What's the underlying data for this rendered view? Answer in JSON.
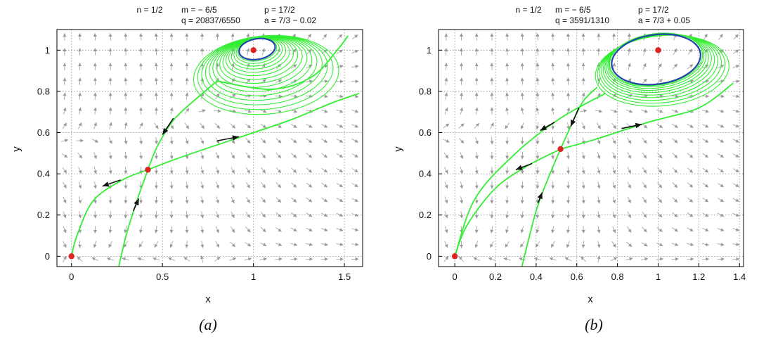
{
  "colors": {
    "orbit": "#33ee33",
    "limit_cycle": "#2244aa",
    "equilibrium": "#dd2222",
    "vector": "#9a9a9a",
    "arrow": "#111111",
    "grid": "#888888"
  },
  "chart_data": [
    {
      "type": "phase-portrait",
      "caption": "(a)",
      "params": {
        "n": "n = 1/2",
        "m": "m = − 6/5",
        "p": "p = 17/2",
        "q": "q = 20837/6550",
        "a": "a = 7/3 − 0.02"
      },
      "xlabel": "x",
      "ylabel": "y",
      "xlim": [
        -0.08,
        1.6
      ],
      "ylim": [
        -0.05,
        1.1
      ],
      "xticks": [
        0,
        0.5,
        1,
        1.5
      ],
      "xtick_labels": [
        "0",
        "0.5",
        "1",
        "1.5"
      ],
      "yticks": [
        0,
        0.2,
        0.4,
        0.6,
        0.8,
        1
      ],
      "ytick_labels": [
        "0",
        "0.2",
        "0.4",
        "0.6",
        "0.8",
        "1"
      ],
      "grid": true,
      "equilibria": [
        [
          0,
          0
        ],
        [
          0.42,
          0.42
        ],
        [
          1,
          1
        ]
      ],
      "cycle": {
        "cx": 1.02,
        "cy": 1.005,
        "rx": 0.1,
        "ry": 0.05,
        "ang": -10
      },
      "spiral": {
        "n": 16,
        "cx0": 1.02,
        "cy0": 1.005,
        "rx0": 0.1,
        "ry0": 0.05,
        "ang0": -10,
        "cx1": 1.07,
        "cy1": 0.88,
        "rx1": 0.4,
        "ry1": 0.19,
        "ang1": -5
      },
      "curves": [
        [
          [
            0.26,
            -0.05
          ],
          [
            0.3,
            0.1
          ],
          [
            0.36,
            0.27
          ],
          [
            0.42,
            0.42
          ]
        ],
        [
          [
            0.42,
            0.42
          ],
          [
            0.47,
            0.53
          ],
          [
            0.56,
            0.66
          ],
          [
            0.68,
            0.76
          ],
          [
            0.8,
            0.85
          ]
        ],
        [
          [
            0.42,
            0.42
          ],
          [
            0.6,
            0.48
          ],
          [
            0.9,
            0.57
          ],
          [
            1.2,
            0.66
          ],
          [
            1.42,
            0.74
          ],
          [
            1.58,
            0.79
          ]
        ],
        [
          [
            0.42,
            0.42
          ],
          [
            0.28,
            0.37
          ],
          [
            0.12,
            0.27
          ],
          [
            0.03,
            0.1
          ],
          [
            0,
            0
          ]
        ],
        [
          [
            0.8,
            0.85
          ],
          [
            1.1,
            0.81
          ],
          [
            1.32,
            0.87
          ],
          [
            1.46,
            1.0
          ],
          [
            1.52,
            1.07
          ]
        ]
      ],
      "arrows": [
        [
          [
            0.34,
            0.22
          ],
          [
            0.37,
            0.28
          ]
        ],
        [
          [
            0.56,
            0.67
          ],
          [
            0.5,
            0.59
          ]
        ],
        [
          [
            0.27,
            0.37
          ],
          [
            0.17,
            0.34
          ]
        ],
        [
          [
            0.8,
            0.56
          ],
          [
            0.92,
            0.58
          ]
        ]
      ]
    },
    {
      "type": "phase-portrait",
      "caption": "(b)",
      "params": {
        "n": "n = 1/2",
        "m": "m = − 6/5",
        "p": "p = 17/2",
        "q": "q = 3591/1310",
        "a": "a = 7/3 + 0.05"
      },
      "xlabel": "x",
      "ylabel": "y",
      "xlim": [
        -0.08,
        1.42
      ],
      "ylim": [
        -0.05,
        1.1
      ],
      "xticks": [
        0,
        0.2,
        0.4,
        0.6,
        0.8,
        1,
        1.2,
        1.4
      ],
      "xtick_labels": [
        "0",
        "0.2",
        "0.4",
        "0.6",
        "0.8",
        "1",
        "1.2",
        "1.4"
      ],
      "yticks": [
        0,
        0.2,
        0.4,
        0.6,
        0.8,
        1
      ],
      "ytick_labels": [
        "0",
        "0.2",
        "0.4",
        "0.6",
        "0.8",
        "1"
      ],
      "grid": true,
      "equilibria": [
        [
          0,
          0
        ],
        [
          0.52,
          0.52
        ],
        [
          1,
          1
        ]
      ],
      "cycle": {
        "cx": 0.99,
        "cy": 0.955,
        "rx": 0.22,
        "ry": 0.12,
        "ang": -8
      },
      "spiral": {
        "n": 10,
        "cx0": 0.99,
        "cy0": 0.955,
        "rx0": 0.23,
        "ry0": 0.125,
        "ang0": -8,
        "cx1": 1.02,
        "cy1": 0.9,
        "rx1": 0.33,
        "ry1": 0.17,
        "ang1": -6
      },
      "curves": [
        [
          [
            0.33,
            -0.05
          ],
          [
            0.4,
            0.22
          ],
          [
            0.46,
            0.38
          ],
          [
            0.52,
            0.52
          ]
        ],
        [
          [
            0.52,
            0.52
          ],
          [
            0.57,
            0.63
          ],
          [
            0.63,
            0.75
          ],
          [
            0.7,
            0.82
          ]
        ],
        [
          [
            0.52,
            0.52
          ],
          [
            0.36,
            0.44
          ],
          [
            0.2,
            0.33
          ],
          [
            0.06,
            0.15
          ],
          [
            0,
            0
          ]
        ],
        [
          [
            0,
            0
          ],
          [
            0.1,
            0.28
          ],
          [
            0.3,
            0.5
          ],
          [
            0.52,
            0.67
          ],
          [
            0.74,
            0.79
          ]
        ],
        [
          [
            0.52,
            0.52
          ],
          [
            0.7,
            0.57
          ],
          [
            0.95,
            0.65
          ],
          [
            1.2,
            0.72
          ],
          [
            1.37,
            0.84
          ]
        ]
      ],
      "arrows": [
        [
          [
            0.41,
            0.26
          ],
          [
            0.43,
            0.31
          ]
        ],
        [
          [
            0.61,
            0.72
          ],
          [
            0.57,
            0.63
          ]
        ],
        [
          [
            0.49,
            0.65
          ],
          [
            0.42,
            0.61
          ]
        ],
        [
          [
            0.38,
            0.45
          ],
          [
            0.3,
            0.42
          ]
        ],
        [
          [
            0.82,
            0.62
          ],
          [
            0.92,
            0.64
          ]
        ]
      ]
    }
  ]
}
